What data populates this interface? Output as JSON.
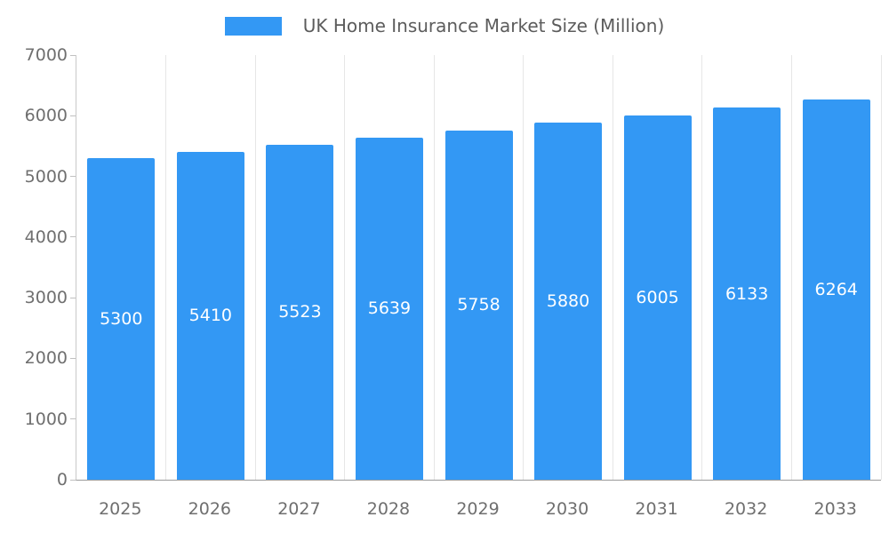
{
  "legend": {
    "label": "UK Home Insurance Market Size (Million)",
    "swatch_color": "#3398f4"
  },
  "chart_data": {
    "type": "bar",
    "title": "UK Home Insurance Market Size (Million)",
    "categories": [
      "2025",
      "2026",
      "2027",
      "2028",
      "2029",
      "2030",
      "2031",
      "2032",
      "2033"
    ],
    "values": [
      5300,
      5410,
      5523,
      5639,
      5758,
      5880,
      6005,
      6133,
      6264
    ],
    "series": [
      {
        "name": "UK Home Insurance Market Size (Million)",
        "values": [
          5300,
          5410,
          5523,
          5639,
          5758,
          5880,
          6005,
          6133,
          6264
        ]
      }
    ],
    "xlabel": "",
    "ylabel": "",
    "ylim": [
      0,
      7000
    ],
    "yticks": [
      0,
      1000,
      2000,
      3000,
      4000,
      5000,
      6000,
      7000
    ],
    "bar_color": "#3398f4",
    "bar_label_color": "#ffffff",
    "grid": "vertical",
    "legend_position": "top"
  }
}
